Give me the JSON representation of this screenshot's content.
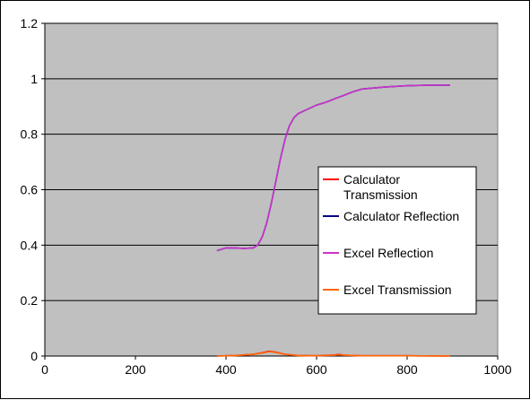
{
  "chart_data": {
    "type": "line",
    "title": "",
    "xlabel": "",
    "ylabel": "",
    "xlim": [
      0,
      1000
    ],
    "ylim": [
      0,
      1.2
    ],
    "x_ticks": [
      0,
      200,
      400,
      600,
      800,
      1000
    ],
    "y_ticks": [
      0,
      0.2,
      0.4,
      0.6,
      0.8,
      1,
      1.2
    ],
    "x_tick_labels": [
      "0",
      "200",
      "400",
      "600",
      "800",
      "1000"
    ],
    "y_tick_labels": [
      "0",
      "0.2",
      "0.4",
      "0.6",
      "0.8",
      "1",
      "1.2"
    ],
    "grid": "horizontal",
    "plot_background": "#c0c0c0",
    "legend_position": "right",
    "series": [
      {
        "name": "Calculator Transmission",
        "color": "#ff0000",
        "points": [
          [
            380,
            0.0
          ],
          [
            420,
            0.002
          ],
          [
            460,
            0.006
          ],
          [
            480,
            0.012
          ],
          [
            495,
            0.017
          ],
          [
            510,
            0.014
          ],
          [
            530,
            0.006
          ],
          [
            560,
            0.002
          ],
          [
            600,
            0.001
          ],
          [
            640,
            0.004
          ],
          [
            650,
            0.006
          ],
          [
            660,
            0.003
          ],
          [
            700,
            0.001
          ],
          [
            800,
            0.001
          ],
          [
            895,
            0.0
          ]
        ]
      },
      {
        "name": "Calculator Reflection",
        "color": "#000080",
        "points": [
          [
            380,
            0.38
          ],
          [
            400,
            0.39
          ],
          [
            420,
            0.39
          ],
          [
            440,
            0.388
          ],
          [
            460,
            0.39
          ],
          [
            470,
            0.4
          ],
          [
            480,
            0.43
          ],
          [
            490,
            0.48
          ],
          [
            500,
            0.55
          ],
          [
            510,
            0.63
          ],
          [
            520,
            0.71
          ],
          [
            530,
            0.78
          ],
          [
            540,
            0.83
          ],
          [
            550,
            0.86
          ],
          [
            560,
            0.875
          ],
          [
            580,
            0.89
          ],
          [
            600,
            0.905
          ],
          [
            620,
            0.915
          ],
          [
            640,
            0.928
          ],
          [
            660,
            0.94
          ],
          [
            680,
            0.953
          ],
          [
            700,
            0.963
          ],
          [
            750,
            0.97
          ],
          [
            800,
            0.975
          ],
          [
            850,
            0.977
          ],
          [
            895,
            0.977
          ]
        ]
      },
      {
        "name": "Excel Reflection",
        "color": "#cc33cc",
        "points": [
          [
            380,
            0.38
          ],
          [
            400,
            0.39
          ],
          [
            420,
            0.39
          ],
          [
            440,
            0.388
          ],
          [
            460,
            0.39
          ],
          [
            470,
            0.4
          ],
          [
            480,
            0.43
          ],
          [
            490,
            0.48
          ],
          [
            500,
            0.55
          ],
          [
            510,
            0.63
          ],
          [
            520,
            0.71
          ],
          [
            530,
            0.78
          ],
          [
            540,
            0.83
          ],
          [
            550,
            0.86
          ],
          [
            560,
            0.875
          ],
          [
            580,
            0.89
          ],
          [
            600,
            0.905
          ],
          [
            620,
            0.915
          ],
          [
            640,
            0.928
          ],
          [
            660,
            0.94
          ],
          [
            680,
            0.953
          ],
          [
            700,
            0.963
          ],
          [
            750,
            0.97
          ],
          [
            800,
            0.975
          ],
          [
            850,
            0.977
          ],
          [
            895,
            0.977
          ]
        ]
      },
      {
        "name": "Excel Transmission",
        "color": "#ff6600",
        "points": [
          [
            380,
            0.0
          ],
          [
            420,
            0.002
          ],
          [
            460,
            0.006
          ],
          [
            480,
            0.011
          ],
          [
            495,
            0.016
          ],
          [
            510,
            0.013
          ],
          [
            530,
            0.006
          ],
          [
            560,
            0.002
          ],
          [
            600,
            0.001
          ],
          [
            640,
            0.003
          ],
          [
            650,
            0.005
          ],
          [
            660,
            0.003
          ],
          [
            700,
            0.001
          ],
          [
            800,
            0.001
          ],
          [
            895,
            0.0
          ]
        ]
      }
    ],
    "legend": {
      "entries": [
        {
          "label_lines": [
            "Calculator",
            "Transmission"
          ],
          "color": "#ff0000"
        },
        {
          "label_lines": [
            "Calculator Reflection"
          ],
          "color": "#000080"
        },
        {
          "label_lines": [
            "Excel Reflection"
          ],
          "color": "#cc33cc"
        },
        {
          "label_lines": [
            "Excel Transmission"
          ],
          "color": "#ff6600"
        }
      ]
    }
  }
}
